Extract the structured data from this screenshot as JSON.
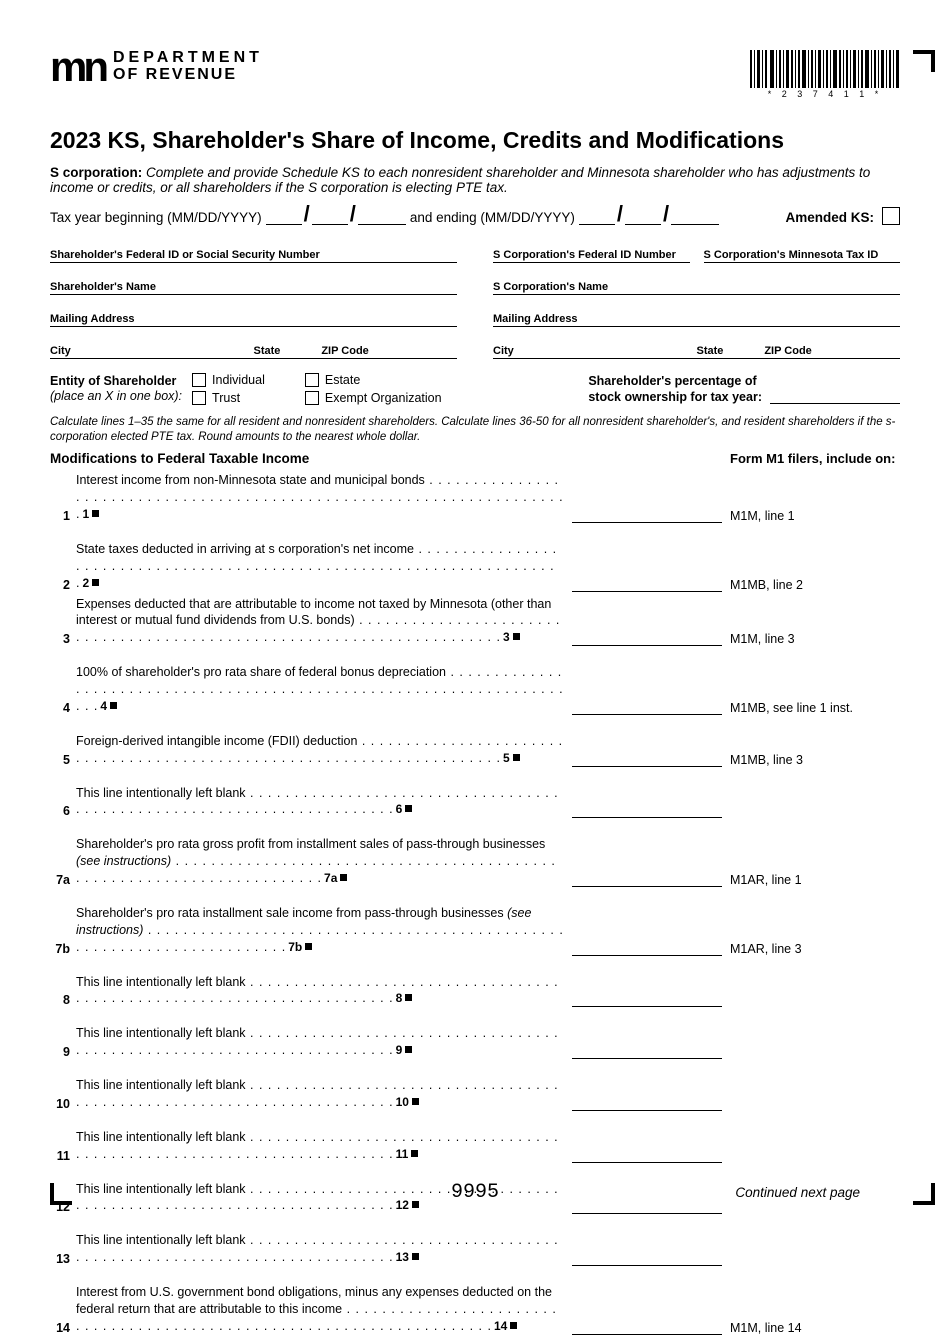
{
  "header": {
    "logo_text": "mn",
    "dept_line1": "DEPARTMENT",
    "dept_line2": "OF REVENUE",
    "barcode_text": "* 2 3 7 4 1 1 *"
  },
  "title": "2023 KS, Shareholder's Share of Income, Credits and Modifications",
  "instruction": {
    "lead_bold": "S corporation:",
    "text": " Complete and provide Schedule KS to each nonresident shareholder and Minnesota shareholder who has adjustments to income or credits, or all shareholders if the S corporation is electing PTE tax."
  },
  "taxyear": {
    "begin_label": "Tax year beginning (MM/DD/YYYY)",
    "end_label": "and ending (MM/DD/YYYY)",
    "amended_label": "Amended KS:"
  },
  "ids": {
    "sh_fed_id": "Shareholder's Federal ID or Social Security Number",
    "sh_name": "Shareholder's Name",
    "sh_addr": "Mailing Address",
    "city": "City",
    "state": "State",
    "zip": "ZIP Code",
    "corp_fed_id": "S Corporation's Federal ID Number",
    "corp_mn_id": "S Corporation's Minnesota Tax ID",
    "corp_name": "S Corporation's Name",
    "corp_addr": "Mailing Address"
  },
  "entity": {
    "label_line1": "Entity of Shareholder",
    "label_line2": "(place an X in one box):",
    "opt_individual": "Individual",
    "opt_trust": "Trust",
    "opt_estate": "Estate",
    "opt_exempt": "Exempt Organization",
    "pct_line1": "Shareholder's percentage of",
    "pct_line2": "stock ownership for tax year:"
  },
  "calc_note": "Calculate lines 1–35 the same for all resident and nonresident shareholders. Calculate lines 36-50 for all nonresident shareholder's, and resident shareholders if the s-corporation elected PTE tax. Round amounts to the nearest whole dollar.",
  "m1_header": "Form M1 filers, include on:",
  "section_title": "Modifications to Federal Taxable Income",
  "lines": [
    {
      "num": "1",
      "text": "Interest income from non-Minnesota state and municipal bonds",
      "marker": "1",
      "ref": "M1M, line 1",
      "gap": true
    },
    {
      "num": "2",
      "text": "State taxes deducted in arriving at s corporation's net income",
      "marker": "2",
      "ref": "M1MB, line 2",
      "gap": false
    },
    {
      "num": "3",
      "text": "Expenses deducted that are attributable to income not taxed by Minnesota (other than interest or mutual fund dividends from U.S. bonds)",
      "marker": "3",
      "ref": "M1M, line 3",
      "gap": true,
      "multiline": true
    },
    {
      "num": "4",
      "text": "100% of shareholder's pro rata share of federal bonus depreciation",
      "marker": "4",
      "ref": "M1MB, see line 1 inst.",
      "gap": true
    },
    {
      "num": "5",
      "text": "Foreign-derived intangible income (FDII) deduction",
      "marker": "5",
      "ref": "M1MB, line 3",
      "gap": true
    },
    {
      "num": "6",
      "text": "This line intentionally left blank",
      "marker": "6",
      "ref": "",
      "gap": true
    },
    {
      "num": "7a",
      "text": "Shareholder's pro rata gross profit from installment sales of pass-through businesses ",
      "ital_suffix": "(see instructions)",
      "marker": "7a",
      "ref": "M1AR, line 1",
      "gap": true,
      "multiline": true
    },
    {
      "num": "7b",
      "text": "Shareholder's pro rata installment sale income from pass-through businesses ",
      "ital_suffix": "(see instructions)",
      "marker": "7b",
      "ref": "M1AR, line 3",
      "gap": true,
      "multiline": true
    },
    {
      "num": "8",
      "text": "This line intentionally left blank",
      "marker": "8",
      "ref": "",
      "gap": true
    },
    {
      "num": "9",
      "text": "This line intentionally left blank",
      "marker": "9",
      "ref": "",
      "gap": true
    },
    {
      "num": "10",
      "text": "This line intentionally left blank",
      "marker": "10",
      "ref": "",
      "gap": true
    },
    {
      "num": "11",
      "text": "This line intentionally left blank",
      "marker": "11",
      "ref": "",
      "gap": true
    },
    {
      "num": "12",
      "text": "This line intentionally left blank",
      "marker": "12",
      "ref": "",
      "gap": true
    },
    {
      "num": "13",
      "text": "This line intentionally left blank",
      "marker": "13",
      "ref": "",
      "gap": true
    },
    {
      "num": "14",
      "text": "Interest from U.S. government bond obligations, minus any expenses deducted on the federal return that are attributable to this income",
      "marker": "14",
      "ref": "M1M, line 14",
      "gap": false,
      "multiline": true
    }
  ],
  "footer": {
    "code": "9995",
    "continued": "Continued next page"
  }
}
